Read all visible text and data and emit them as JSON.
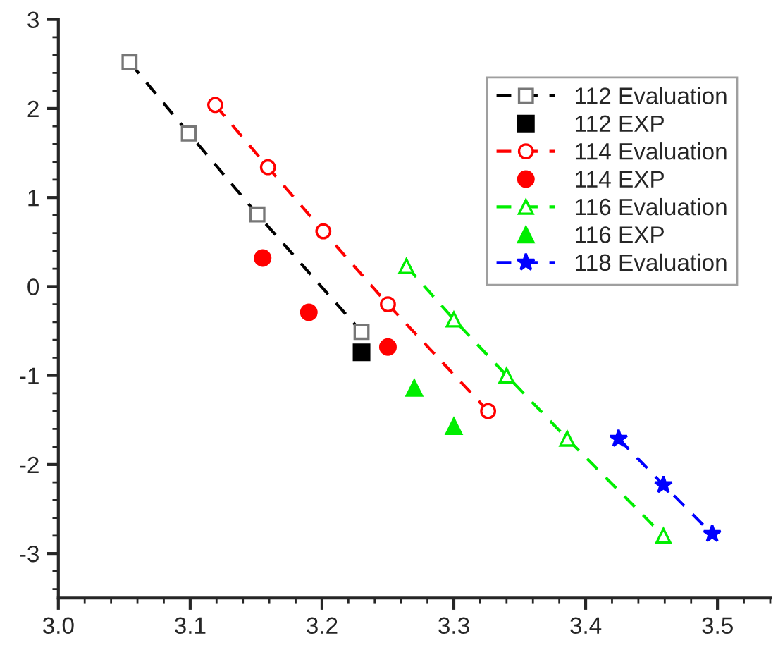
{
  "chart_data": {
    "type": "line",
    "xlim": [
      3.0,
      3.54
    ],
    "ylim": [
      -3.5,
      3
    ],
    "xticks": [
      {
        "value": 3.0,
        "label": "3.0"
      },
      {
        "value": 3.1,
        "label": "3.1"
      },
      {
        "value": 3.2,
        "label": "3.2"
      },
      {
        "value": 3.3,
        "label": "3.3"
      },
      {
        "value": 3.4,
        "label": "3.4"
      },
      {
        "value": 3.5,
        "label": "3.5"
      }
    ],
    "yticks": [
      -3,
      -2,
      -1,
      0,
      1,
      2,
      3
    ],
    "legend": "top right",
    "grid": false,
    "series": [
      {
        "name": "112 Evaluation",
        "color": "#000000",
        "marker": "square",
        "line_style": "dashed",
        "x": [
          3.054,
          3.099,
          3.151,
          3.23
        ],
        "values": [
          2.52,
          1.72,
          0.81,
          -0.51
        ]
      },
      {
        "name": "112 EXP",
        "type": "scatter",
        "color": "#000000",
        "marker": "square",
        "x": [
          3.23
        ],
        "values": [
          -0.74
        ]
      },
      {
        "name": "114 Evaluation",
        "color": "#ff0000",
        "marker": "circle",
        "line_style": "dashed",
        "x": [
          3.119,
          3.159,
          3.201,
          3.25,
          3.326
        ],
        "values": [
          2.04,
          1.34,
          0.62,
          -0.2,
          -1.4
        ]
      },
      {
        "name": "114 EXP",
        "type": "scatter",
        "color": "#ff0000",
        "marker": "circle",
        "x": [
          3.155,
          3.19,
          3.25
        ],
        "values": [
          0.32,
          -0.29,
          -0.68
        ]
      },
      {
        "name": "116 Evaluation",
        "color": "#00ee00",
        "marker": "triangle",
        "line_style": "dashed",
        "x": [
          3.264,
          3.3,
          3.34,
          3.386,
          3.459
        ],
        "values": [
          0.23,
          -0.37,
          -1.0,
          -1.71,
          -2.8
        ]
      },
      {
        "name": "116 EXP",
        "type": "scatter",
        "color": "#00ee00",
        "marker": "triangle",
        "x": [
          3.27,
          3.3
        ],
        "values": [
          -1.14,
          -1.57
        ]
      },
      {
        "name": "118 Evaluation",
        "color": "#0000ff",
        "marker": "star",
        "line_style": "dashed",
        "x": [
          3.425,
          3.459,
          3.496
        ],
        "values": [
          -1.71,
          -2.23,
          -2.78
        ]
      }
    ]
  }
}
